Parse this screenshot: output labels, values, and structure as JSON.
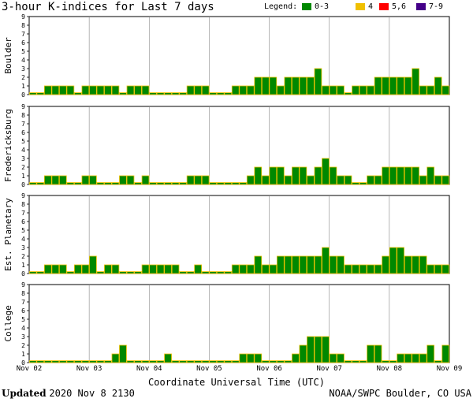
{
  "title": "3-hour K-indices for Last 7 days",
  "legend": {
    "label": "Legend:",
    "items": [
      {
        "label": "0-3",
        "color": "#008800"
      },
      {
        "label": "4",
        "color": "#f0c000"
      },
      {
        "label": "5,6",
        "color": "#ff0000"
      },
      {
        "label": "7-9",
        "color": "#440088"
      }
    ]
  },
  "footer": {
    "updated_label": "Updated",
    "updated_value": "2020 Nov  8 2130",
    "source": "NOAA/SWPC Boulder, CO USA"
  },
  "chart_data": {
    "type": "bar",
    "xlabel": "Coordinate Universal Time (UTC)",
    "x_tick_labels": [
      "Nov 02",
      "Nov 03",
      "Nov 04",
      "Nov 05",
      "Nov 06",
      "Nov 07",
      "Nov 08",
      "Nov 09"
    ],
    "intervals_per_day": 8,
    "ylim": [
      0,
      9
    ],
    "y_ticks": [
      0,
      1,
      2,
      3,
      4,
      5,
      6,
      7,
      8,
      9
    ],
    "bar_color": "#008800",
    "bar_edge_color": "#f0c000",
    "panels": [
      {
        "name": "Boulder",
        "values": [
          0,
          0,
          1,
          1,
          1,
          1,
          0,
          1,
          1,
          1,
          1,
          1,
          0,
          1,
          1,
          1,
          0,
          0,
          0,
          0,
          0,
          1,
          1,
          1,
          0,
          0,
          0,
          1,
          1,
          1,
          2,
          2,
          2,
          1,
          2,
          2,
          2,
          2,
          3,
          1,
          1,
          1,
          0,
          1,
          1,
          1,
          2,
          2,
          2,
          2,
          2,
          3,
          1,
          1,
          2,
          1,
          0
        ]
      },
      {
        "name": "Fredericksburg",
        "values": [
          0,
          0,
          1,
          1,
          1,
          0,
          0,
          1,
          1,
          0,
          0,
          0,
          1,
          1,
          0,
          1,
          0,
          0,
          0,
          0,
          0,
          1,
          1,
          1,
          0,
          0,
          0,
          0,
          0,
          1,
          2,
          1,
          2,
          2,
          1,
          2,
          2,
          1,
          2,
          3,
          2,
          1,
          1,
          0,
          0,
          1,
          1,
          2,
          2,
          2,
          2,
          2,
          1,
          2,
          1,
          1,
          1,
          0,
          0
        ]
      },
      {
        "name": "Est. Planetary",
        "values": [
          0,
          0,
          1,
          1,
          1,
          0,
          1,
          1,
          2,
          0,
          1,
          1,
          0,
          0,
          0,
          1,
          1,
          1,
          1,
          1,
          0,
          0,
          1,
          0,
          0,
          0,
          0,
          1,
          1,
          1,
          2,
          1,
          1,
          2,
          2,
          2,
          2,
          2,
          2,
          3,
          2,
          2,
          1,
          1,
          1,
          1,
          1,
          2,
          3,
          3,
          2,
          2,
          2,
          1,
          1,
          1,
          1,
          0
        ]
      },
      {
        "name": "College",
        "values": [
          0,
          0,
          0,
          0,
          0,
          0,
          0,
          0,
          0,
          0,
          0,
          1,
          2,
          0,
          0,
          0,
          0,
          0,
          1,
          0,
          0,
          0,
          0,
          0,
          0,
          0,
          0,
          0,
          1,
          1,
          1,
          0,
          0,
          0,
          0,
          1,
          2,
          3,
          3,
          3,
          1,
          1,
          0,
          0,
          0,
          2,
          2,
          0,
          0,
          1,
          1,
          1,
          1,
          2,
          0,
          2,
          1,
          0
        ]
      }
    ]
  }
}
